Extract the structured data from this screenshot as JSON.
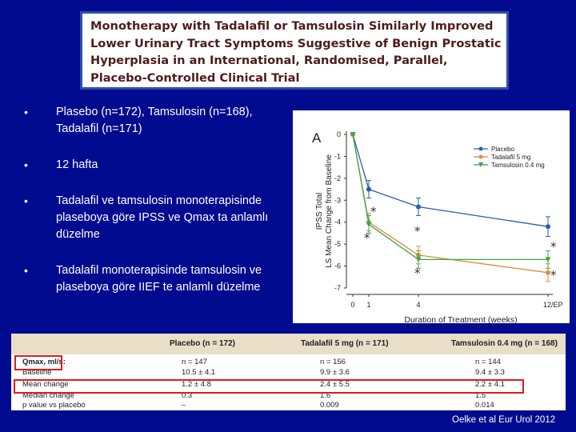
{
  "title": {
    "lines": [
      "Monotherapy with Tadalafil or Tamsulosin Similarly Improved",
      "Lower Urinary Tract Symptoms Suggestive of Benign Prostatic",
      "Hyperplasia in an International, Randomised, Parallel,",
      "Placebo-Controlled Clinical Trial"
    ]
  },
  "bullets": [
    "Plasebo (n=172), Tamsulosin (n=168), Tadalafil (n=171)",
    "12 hafta",
    "Tadalafil ve tamsulosin monoterapisinde plaseboya göre IPSS ve Qmax ta anlamlı düzelme",
    "Tadalafil monoterapisinde tamsulosin ve plaseboya göre IIEF te anlamlı düzelme"
  ],
  "bullet_symbol": "•",
  "chart_data": {
    "type": "line",
    "panel_label": "A",
    "ylabel_lines": [
      "IPSS Total",
      "LS Mean Change from Baseline"
    ],
    "xlabel": "Duration of Treatment (weeks)",
    "x_tick_labels": [
      "0",
      "1",
      "4",
      "12/EP"
    ],
    "x": [
      0,
      1,
      4,
      12
    ],
    "ylim": [
      -7,
      0
    ],
    "y_ticks": [
      0,
      -1,
      -2,
      -3,
      -4,
      -5,
      -6,
      -7
    ],
    "series": [
      {
        "name": "Placebo",
        "color": "#2a5cac",
        "marker": "circle",
        "values": [
          0,
          -2.5,
          -3.3,
          -4.2
        ],
        "errors": [
          0,
          0.4,
          0.4,
          0.45
        ]
      },
      {
        "name": "Tadalafil 5 mg",
        "color": "#e08a3c",
        "marker": "circle",
        "values": [
          0,
          -4.0,
          -5.5,
          -6.3
        ],
        "errors": [
          0,
          0.4,
          0.4,
          0.4
        ]
      },
      {
        "name": "Tamsulosin 0.4 mg",
        "color": "#3aa74a",
        "marker": "triangle-down",
        "values": [
          0,
          -4.1,
          -5.7,
          -5.7
        ],
        "errors": [
          0,
          0.4,
          0.4,
          0.4
        ]
      }
    ],
    "annotations": [
      "*",
      "*",
      "*",
      "*",
      "*",
      "*"
    ]
  },
  "table": {
    "headers": [
      "Placebo (n = 172)",
      "Tadalafil 5 mg (n = 171)",
      "Tamsulosin 0.4 mg (n = 168)"
    ],
    "rows": [
      [
        "Qmax, ml/s:",
        "n = 147",
        "n = 156",
        "n = 144"
      ],
      [
        "Baseline",
        "10.5 ± 4.1",
        "9.9 ± 3.6",
        "9.4 ± 3.3"
      ],
      [
        "Mean change",
        "1.2 ± 4.8",
        "2.4 ± 5.5",
        "2.2 ± 4.1"
      ],
      [
        "Median change",
        "0.3",
        "1.6",
        "1.5"
      ],
      [
        "p value vs placebo",
        "–",
        "0.009",
        "0.014"
      ]
    ]
  },
  "citation": "Oelke et al Eur Urol 2012",
  "colors": {
    "background": "#000b8f",
    "highlight": "#e11b1b"
  }
}
